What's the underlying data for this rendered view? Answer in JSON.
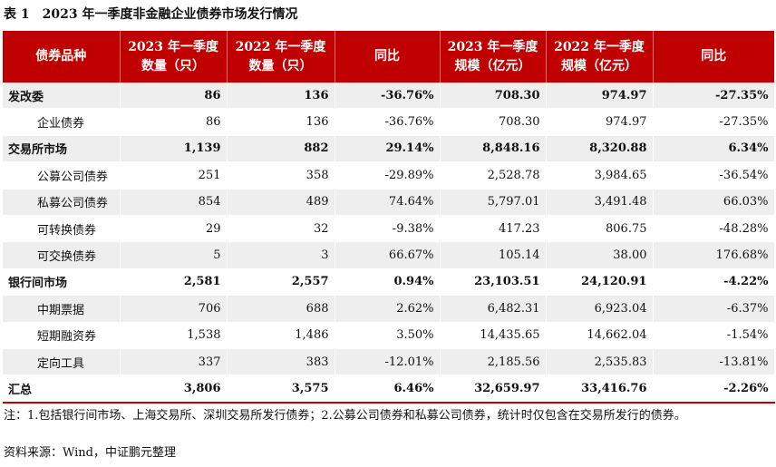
{
  "caption": {
    "number": "表 1",
    "title": "2023 年一季度非金融企业债券市场发行情况"
  },
  "headers": [
    {
      "line1": "债券品种",
      "line2": ""
    },
    {
      "line1": "2023 年一季度",
      "line2": "数量（只）"
    },
    {
      "line1": "2022 年一季度",
      "line2": "数量（只）"
    },
    {
      "line1": "同比",
      "line2": ""
    },
    {
      "line1": "2023 年一季度",
      "line2": "规模（亿元）"
    },
    {
      "line1": "2022 年一季度",
      "line2": "规模（亿元）"
    },
    {
      "line1": "同比",
      "line2": ""
    }
  ],
  "rows": [
    {
      "kind": "group",
      "cells": [
        "发改委",
        "86",
        "136",
        "-36.76%",
        "708.30",
        "974.97",
        "-27.35%"
      ]
    },
    {
      "kind": "sub",
      "cells": [
        "企业债券",
        "86",
        "136",
        "-36.76%",
        "708.30",
        "974.97",
        "-27.35%"
      ]
    },
    {
      "kind": "group",
      "cells": [
        "交易所市场",
        "1,139",
        "882",
        "29.14%",
        "8,848.16",
        "8,320.88",
        "6.34%"
      ]
    },
    {
      "kind": "sub",
      "cells": [
        "公募公司债券",
        "251",
        "358",
        "-29.89%",
        "2,528.78",
        "3,984.65",
        "-36.54%"
      ]
    },
    {
      "kind": "sub",
      "cells": [
        "私募公司债券",
        "854",
        "489",
        "74.64%",
        "5,797.01",
        "3,491.48",
        "66.03%"
      ]
    },
    {
      "kind": "sub",
      "cells": [
        "可转换债券",
        "29",
        "32",
        "-9.38%",
        "417.23",
        "806.75",
        "-48.28%"
      ]
    },
    {
      "kind": "sub",
      "cells": [
        "可交换债券",
        "5",
        "3",
        "66.67%",
        "105.14",
        "38.00",
        "176.68%"
      ]
    },
    {
      "kind": "group",
      "cells": [
        "银行间市场",
        "2,581",
        "2,557",
        "0.94%",
        "23,103.51",
        "24,120.91",
        "-4.22%"
      ]
    },
    {
      "kind": "sub",
      "cells": [
        "中期票据",
        "706",
        "688",
        "2.62%",
        "6,482.31",
        "6,923.04",
        "-6.37%"
      ]
    },
    {
      "kind": "sub",
      "cells": [
        "短期融资券",
        "1,538",
        "1,486",
        "3.50%",
        "14,435.65",
        "14,662.04",
        "-1.54%"
      ]
    },
    {
      "kind": "sub",
      "cells": [
        "定向工具",
        "337",
        "383",
        "-12.01%",
        "2,185.56",
        "2,535.83",
        "-13.81%"
      ]
    },
    {
      "kind": "group",
      "cells": [
        "汇总",
        "3,806",
        "3,575",
        "6.46%",
        "32,659.97",
        "33,416.76",
        "-2.26%"
      ]
    }
  ],
  "note": "注：1.包括银行间市场、上海交易所、深圳交易所发行债券；2.公募公司债券和私募公司债券，统计时仅包含在交易所发行的债券。",
  "source": "资料来源：Wind，中证鹏元整理",
  "colors": {
    "header_bg": "#c00000",
    "stripe": "#eeeeee"
  }
}
